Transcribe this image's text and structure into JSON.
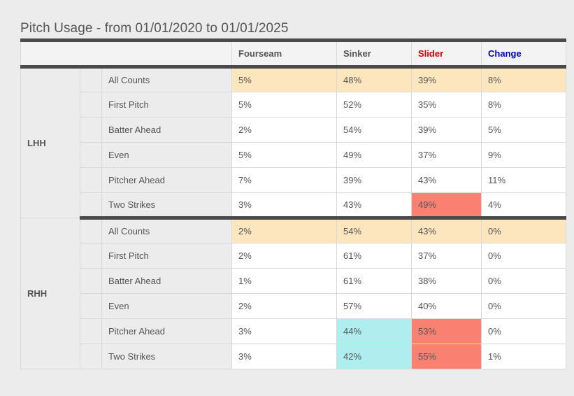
{
  "title": "Pitch Usage - from 01/01/2020 to 01/01/2025",
  "columns": [
    {
      "label": "Fourseam",
      "color": "#555555"
    },
    {
      "label": "Sinker",
      "color": "#555555"
    },
    {
      "label": "Slider",
      "color": "#dd0000"
    },
    {
      "label": "Change",
      "color": "#0000cc"
    }
  ],
  "highlight_colors": {
    "all_counts": "#fde5bd",
    "high": "#fa8072",
    "low": "#afeeee"
  },
  "groups": [
    {
      "label": "LHH",
      "rows": [
        {
          "label": "All Counts",
          "values": [
            "5%",
            "48%",
            "39%",
            "8%"
          ],
          "highlights": [
            "all_counts",
            "all_counts",
            "all_counts",
            "all_counts"
          ]
        },
        {
          "label": "First Pitch",
          "values": [
            "5%",
            "52%",
            "35%",
            "8%"
          ],
          "highlights": [
            "",
            "",
            "",
            ""
          ]
        },
        {
          "label": "Batter Ahead",
          "values": [
            "2%",
            "54%",
            "39%",
            "5%"
          ],
          "highlights": [
            "",
            "",
            "",
            ""
          ]
        },
        {
          "label": "Even",
          "values": [
            "5%",
            "49%",
            "37%",
            "9%"
          ],
          "highlights": [
            "",
            "",
            "",
            ""
          ]
        },
        {
          "label": "Pitcher Ahead",
          "values": [
            "7%",
            "39%",
            "43%",
            "11%"
          ],
          "highlights": [
            "",
            "",
            "",
            ""
          ]
        },
        {
          "label": "Two Strikes",
          "values": [
            "3%",
            "43%",
            "49%",
            "4%"
          ],
          "highlights": [
            "",
            "",
            "high",
            ""
          ]
        }
      ]
    },
    {
      "label": "RHH",
      "rows": [
        {
          "label": "All Counts",
          "values": [
            "2%",
            "54%",
            "43%",
            "0%"
          ],
          "highlights": [
            "all_counts",
            "all_counts",
            "all_counts",
            "all_counts"
          ]
        },
        {
          "label": "First Pitch",
          "values": [
            "2%",
            "61%",
            "37%",
            "0%"
          ],
          "highlights": [
            "",
            "",
            "",
            ""
          ]
        },
        {
          "label": "Batter Ahead",
          "values": [
            "1%",
            "61%",
            "38%",
            "0%"
          ],
          "highlights": [
            "",
            "",
            "",
            ""
          ]
        },
        {
          "label": "Even",
          "values": [
            "2%",
            "57%",
            "40%",
            "0%"
          ],
          "highlights": [
            "",
            "",
            "",
            ""
          ]
        },
        {
          "label": "Pitcher Ahead",
          "values": [
            "3%",
            "44%",
            "53%",
            "0%"
          ],
          "highlights": [
            "",
            "low",
            "high",
            ""
          ]
        },
        {
          "label": "Two Strikes",
          "values": [
            "3%",
            "42%",
            "55%",
            "1%"
          ],
          "highlights": [
            "",
            "low",
            "high",
            ""
          ]
        }
      ]
    }
  ]
}
